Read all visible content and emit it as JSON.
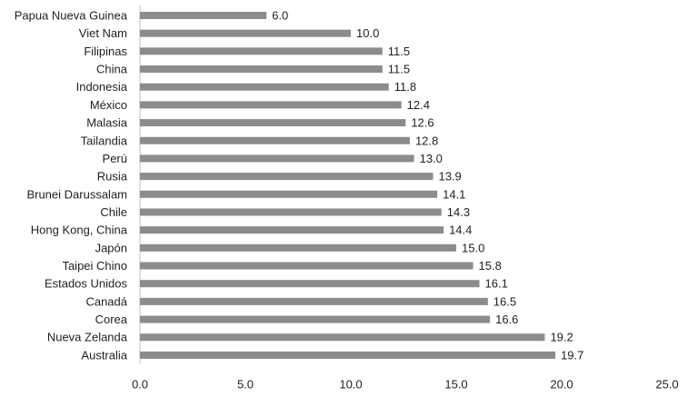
{
  "chart_data": {
    "type": "bar",
    "orientation": "horizontal",
    "categories": [
      "Papua Nueva Guinea",
      "Viet Nam",
      "Filipinas",
      "China",
      "Indonesia",
      "México",
      "Malasia",
      "Tailandia",
      "Perú",
      "Rusia",
      "Brunei Darussalam",
      "Chile",
      "Hong Kong, China",
      "Japón",
      "Taipei Chino",
      "Estados Unidos",
      "Canadá",
      "Corea",
      "Nueva Zelanda",
      "Australia"
    ],
    "values": [
      6.0,
      10.0,
      11.5,
      11.5,
      11.8,
      12.4,
      12.6,
      12.8,
      13.0,
      13.9,
      14.1,
      14.3,
      14.4,
      15.0,
      15.8,
      16.1,
      16.5,
      16.6,
      19.2,
      19.7
    ],
    "value_labels": [
      "6.0",
      "10.0",
      "11.5",
      "11.5",
      "11.8",
      "12.4",
      "12.6",
      "12.8",
      "13.0",
      "13.9",
      "14.1",
      "14.3",
      "14.4",
      "15.0",
      "15.8",
      "16.1",
      "16.5",
      "16.6",
      "19.2",
      "19.7"
    ],
    "x_ticks": [
      "0.0",
      "5.0",
      "10.0",
      "15.0",
      "20.0",
      "25.0"
    ],
    "xlim": [
      0,
      25
    ],
    "grid": false,
    "legend": "none",
    "bar_color": "#8c8c8c",
    "title": "",
    "xlabel": "",
    "ylabel": ""
  }
}
